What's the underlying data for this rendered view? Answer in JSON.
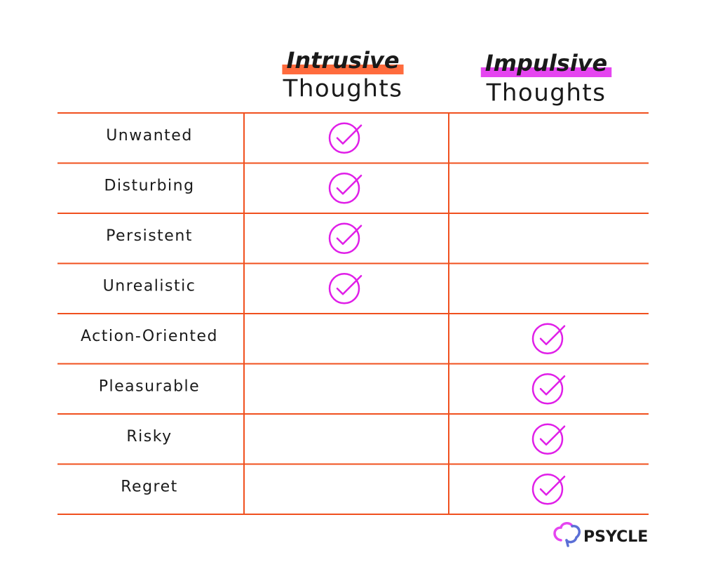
{
  "header": {
    "columns": [
      {
        "title": "Intrusive",
        "subtitle": "Thoughts",
        "highlight": "#ff6b3d"
      },
      {
        "title": "Impulsive",
        "subtitle": "Thoughts",
        "highlight": "#e545f0"
      }
    ]
  },
  "table": {
    "line_color": "#f0501e",
    "check_color": "#e01ee8",
    "rows": [
      {
        "label": "Unwanted",
        "checks": [
          true,
          false
        ]
      },
      {
        "label": "Disturbing",
        "checks": [
          true,
          false
        ]
      },
      {
        "label": "Persistent",
        "checks": [
          true,
          false
        ]
      },
      {
        "label": "Unrealistic",
        "checks": [
          true,
          false
        ]
      },
      {
        "label": "Action-Oriented",
        "checks": [
          false,
          true
        ]
      },
      {
        "label": "Pleasurable",
        "checks": [
          false,
          true
        ]
      },
      {
        "label": "Risky",
        "checks": [
          false,
          true
        ]
      },
      {
        "label": "Regret",
        "checks": [
          false,
          true
        ]
      }
    ]
  },
  "logo": {
    "text": "PSYCLE"
  }
}
